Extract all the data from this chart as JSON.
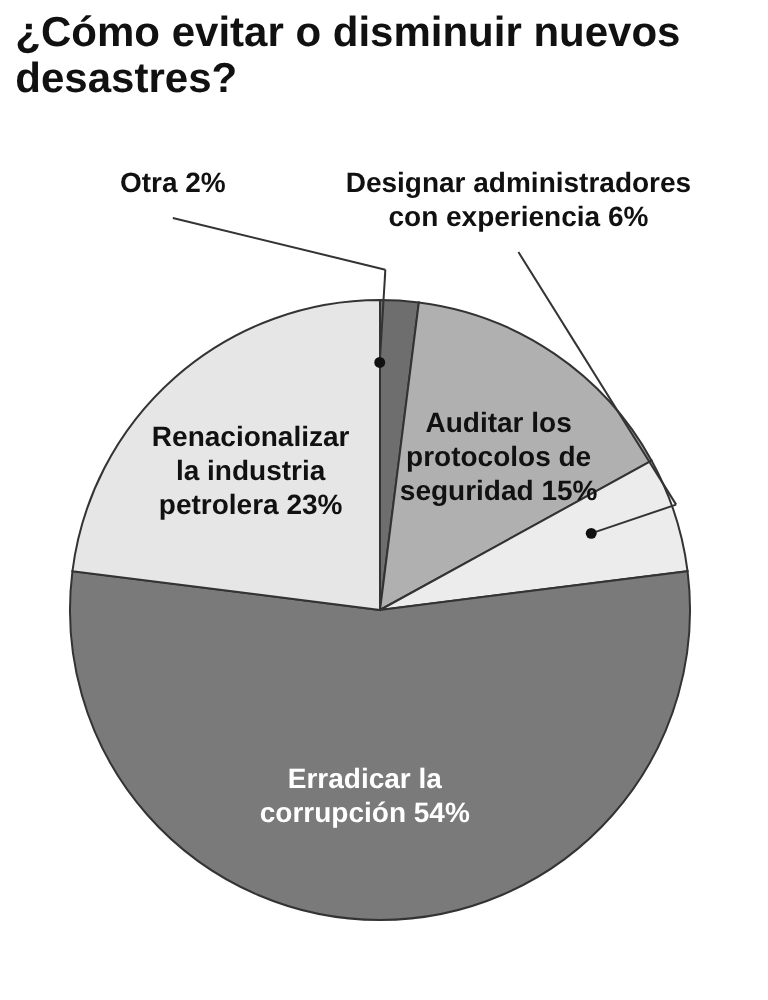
{
  "chart_data": {
    "type": "pie",
    "title": "¿Cómo evitar o disminuir nuevos desastres?",
    "categories": [
      "Otra",
      "Auditar los protocolos de seguridad",
      "Designar administradores con experiencia",
      "Erradicar la corrupción",
      "Renacionalizar la industria petrolera"
    ],
    "values": [
      2,
      15,
      6,
      54,
      23
    ],
    "value_labels": [
      "2%",
      "15%",
      "6%",
      "54%",
      "23%"
    ],
    "colors": [
      "#6e6e6e",
      "#b0b0b0",
      "#ececec",
      "#7a7a7a",
      "#e6e6e6"
    ]
  }
}
